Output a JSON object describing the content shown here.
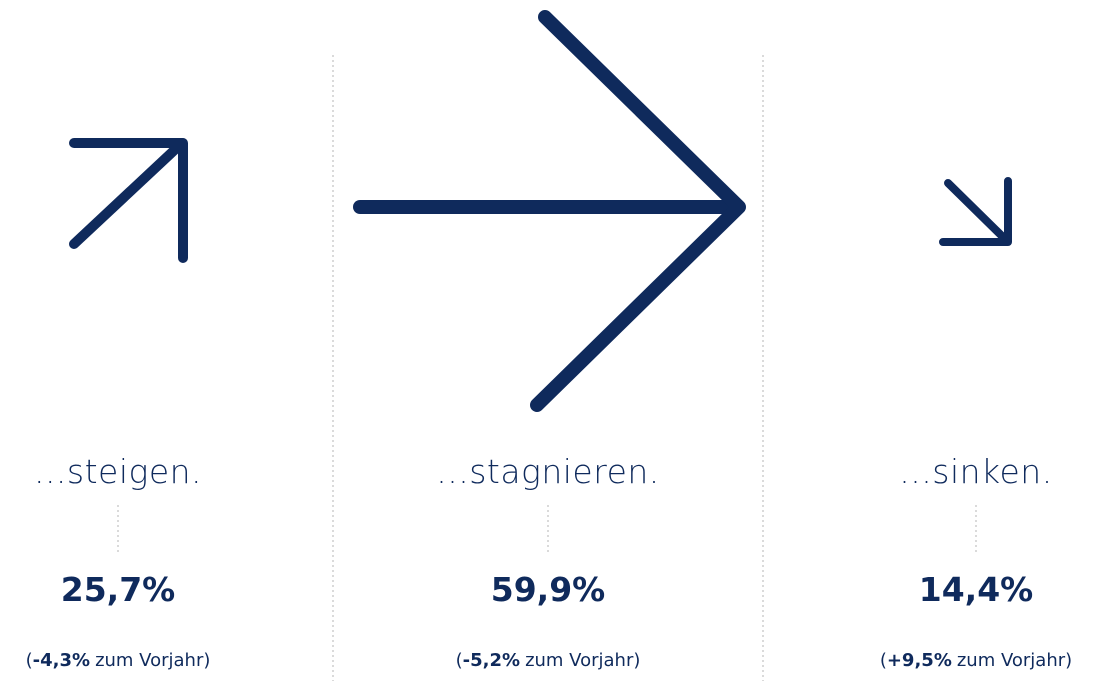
{
  "columns": [
    {
      "label": "...steigen.",
      "value": "25,7%",
      "change_open": "(",
      "change": "-4,3%",
      "change_suffix": "zum Vorjahr)"
    },
    {
      "label": "...stagnieren.",
      "value": "59,9%",
      "change_open": "(",
      "change": "-5,2%",
      "change_suffix": "zum Vorjahr)"
    },
    {
      "label": "...sinken.",
      "value": "14,4%",
      "change_open": "(",
      "change": "+9,5%",
      "change_suffix": "zum Vorjahr)"
    }
  ]
}
